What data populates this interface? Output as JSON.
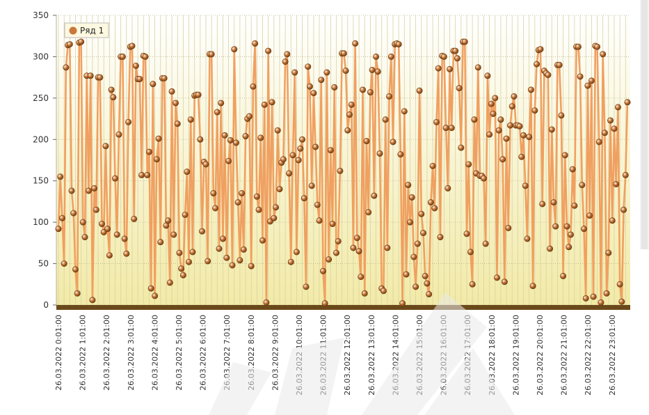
{
  "colors": {
    "line": "#f0a060",
    "marker_fill": "#c8783a",
    "marker_edge": "#6a3a10",
    "baseline": "#6b4a1a",
    "plot_top": "#ffffff",
    "plot_bottom": "#f2eaa6",
    "grid": "#d8d2a8"
  },
  "legend": {
    "label": "Ряд 1",
    "position": "top-left"
  },
  "chart_data": {
    "type": "line",
    "ylim": [
      0,
      350
    ],
    "y_ticks": [
      0,
      50,
      100,
      150,
      200,
      250,
      300,
      350
    ],
    "grid": true,
    "x_tick_labels": [
      "26.03.2022 0:01:00",
      "26.03.2022 1:01:00",
      "26.03.2022 2:01:00",
      "26.03.2022 3:01:00",
      "26.03.2022 4:01:00",
      "26.03.2022 5:01:00",
      "26.03.2022 6:01:00",
      "26.03.2022 7:01:00",
      "26.03.2022 8:01:00",
      "26.03.2022 9:01:00",
      "26.03.2022 10:01:00",
      "26.03.2022 11:01:00",
      "26.03.2022 12:01:00",
      "26.03.2022 13:01:00",
      "26.03.2022 14:01:00",
      "26.03.2022 15:01:00",
      "26.03.2022 16:01:00",
      "26.03.2022 17:01:00",
      "26.03.2022 18:01:00",
      "26.03.2022 19:01:00",
      "26.03.2022 20:01:00",
      "26.03.2022 21:01:00",
      "26.03.2022 22:01:00",
      "26.03.2022 23:01:00"
    ],
    "series": [
      {
        "name": "Ряд 1",
        "values": [
          92,
          155,
          105,
          50,
          287,
          314,
          315,
          138,
          111,
          43,
          14,
          317,
          318,
          100,
          82,
          277,
          138,
          277,
          6,
          141,
          115,
          275,
          275,
          98,
          88,
          192,
          92,
          60,
          260,
          251,
          153,
          85,
          206,
          300,
          300,
          80,
          62,
          221,
          312,
          313,
          104,
          289,
          273,
          273,
          157,
          301,
          300,
          157,
          185,
          20,
          267,
          11,
          176,
          201,
          76,
          274,
          274,
          96,
          102,
          27,
          258,
          85,
          244,
          219,
          63,
          44,
          36,
          109,
          161,
          52,
          224,
          64,
          253,
          254,
          254,
          200,
          89,
          173,
          170,
          53,
          303,
          303,
          135,
          117,
          233,
          68,
          244,
          80,
          205,
          57,
          174,
          199,
          48,
          309,
          196,
          124,
          54,
          135,
          67,
          204,
          225,
          228,
          47,
          264,
          316,
          131,
          115,
          202,
          78,
          242,
          3,
          307,
          101,
          245,
          105,
          118,
          211,
          140,
          172,
          176,
          294,
          303,
          159,
          52,
          181,
          281,
          64,
          175,
          189,
          200,
          129,
          22,
          288,
          264,
          144,
          256,
          191,
          121,
          102,
          272,
          41,
          2,
          281,
          55,
          187,
          98,
          263,
          63,
          77,
          162,
          304,
          304,
          283,
          211,
          230,
          242,
          69,
          316,
          81,
          65,
          34,
          260,
          14,
          198,
          112,
          257,
          284,
          132,
          300,
          282,
          183,
          20,
          17,
          224,
          69,
          252,
          300,
          197,
          315,
          316,
          315,
          182,
          2,
          234,
          37,
          145,
          100,
          130,
          58,
          22,
          74,
          259,
          110,
          87,
          35,
          26,
          13,
          124,
          168,
          117,
          221,
          286,
          82,
          301,
          300,
          214,
          141,
          285,
          214,
          307,
          307,
          298,
          262,
          190,
          318,
          318,
          86,
          170,
          64,
          25,
          224,
          159,
          287,
          156,
          156,
          153,
          74,
          277,
          206,
          243,
          231,
          250,
          33,
          211,
          224,
          176,
          28,
          201,
          93,
          217,
          240,
          252,
          217,
          217,
          216,
          179,
          205,
          144,
          80,
          203,
          260,
          23,
          235,
          291,
          308,
          309,
          122,
          283,
          280,
          278,
          68,
          212,
          124,
          95,
          290,
          290,
          229,
          35,
          181,
          95,
          70,
          85,
          164,
          120,
          312,
          312,
          276,
          145,
          92,
          8,
          265,
          108,
          271,
          10,
          313,
          312,
          197,
          3,
          303,
          208,
          14,
          63,
          223,
          102,
          213,
          146,
          239,
          25,
          4,
          115,
          157,
          245
        ]
      }
    ]
  }
}
